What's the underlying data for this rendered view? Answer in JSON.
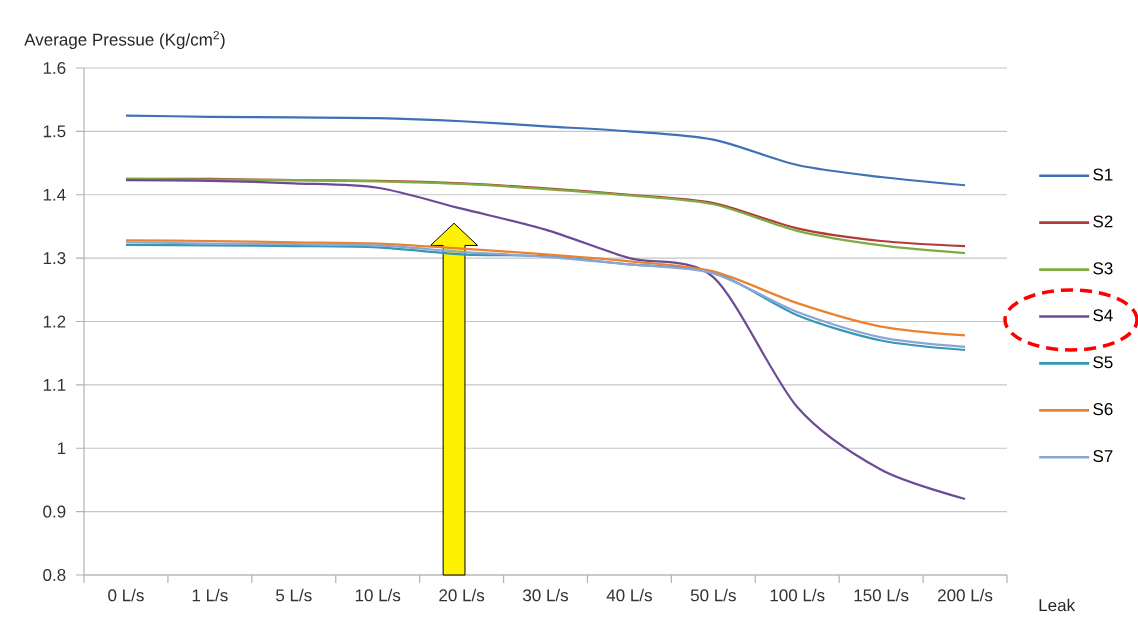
{
  "chart_data": {
    "type": "line",
    "ylabel": "Average Pressue (Kg/cm$^{2}$)",
    "xlabel": "Leak",
    "categories": [
      "0  L/s",
      "1 L/s",
      "5  L/s",
      "10  L/s",
      "20  L/s",
      "30  L/s",
      "40  L/s",
      "50  L/s",
      "100  L/s",
      "150 L/s",
      "200 L/s"
    ],
    "series": [
      {
        "name": "S1",
        "color": "#3f72b5",
        "values": [
          1.525,
          1.523,
          1.522,
          1.521,
          1.516,
          1.508,
          1.5,
          1.487,
          1.447,
          1.428,
          1.415
        ]
      },
      {
        "name": "S2",
        "color": "#b03c38",
        "values": [
          1.425,
          1.425,
          1.423,
          1.422,
          1.418,
          1.41,
          1.4,
          1.387,
          1.347,
          1.327,
          1.319
        ]
      },
      {
        "name": "S3",
        "color": "#7fab42",
        "values": [
          1.425,
          1.424,
          1.423,
          1.421,
          1.417,
          1.409,
          1.399,
          1.385,
          1.343,
          1.32,
          1.308
        ]
      },
      {
        "name": "S4",
        "color": "#6d4a96",
        "values": [
          1.423,
          1.422,
          1.418,
          1.411,
          1.378,
          1.345,
          1.3,
          1.27,
          1.065,
          0.966,
          0.92
        ]
      },
      {
        "name": "S5",
        "color": "#3598b3",
        "values": [
          1.321,
          1.32,
          1.319,
          1.317,
          1.306,
          1.303,
          1.29,
          1.278,
          1.21,
          1.17,
          1.155
        ]
      },
      {
        "name": "S6",
        "color": "#e9832e",
        "values": [
          1.328,
          1.327,
          1.325,
          1.323,
          1.315,
          1.306,
          1.295,
          1.279,
          1.229,
          1.192,
          1.178
        ]
      },
      {
        "name": "S7",
        "color": "#8aa6d6",
        "values": [
          1.325,
          1.323,
          1.322,
          1.32,
          1.31,
          1.302,
          1.29,
          1.276,
          1.215,
          1.175,
          1.16
        ]
      }
    ],
    "ylim": [
      0.8,
      1.6
    ],
    "yticks": [
      0.8,
      0.9,
      1,
      1.1,
      1.2,
      1.3,
      1.4,
      1.5,
      1.6
    ],
    "grid": "y",
    "legend": "right"
  }
}
